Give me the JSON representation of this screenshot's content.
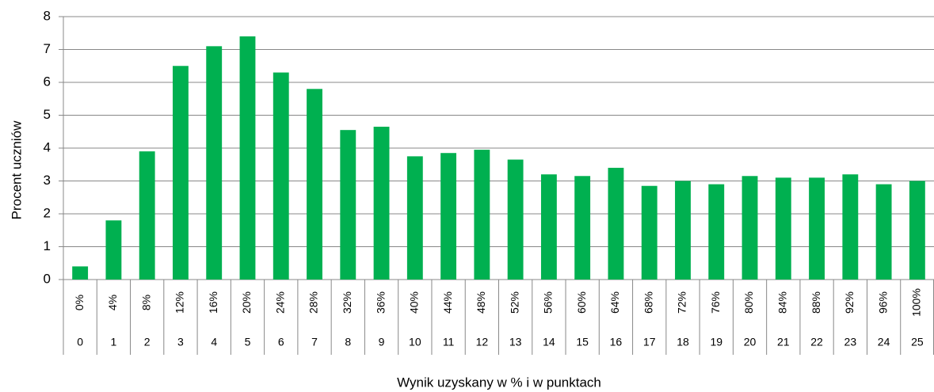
{
  "chart_data": {
    "type": "bar",
    "y_label": "Procent uczniów",
    "x_label": "Wynik uzyskany w % i w punktach",
    "categories": [
      "0",
      "1",
      "2",
      "3",
      "4",
      "5",
      "6",
      "7",
      "8",
      "9",
      "10",
      "11",
      "12",
      "13",
      "14",
      "15",
      "16",
      "17",
      "18",
      "19",
      "20",
      "21",
      "22",
      "23",
      "24",
      "25"
    ],
    "percent_labels": [
      "0%",
      "4%",
      "8%",
      "12%",
      "16%",
      "20%",
      "24%",
      "28%",
      "32%",
      "36%",
      "40%",
      "44%",
      "48%",
      "52%",
      "56%",
      "60%",
      "64%",
      "68%",
      "72%",
      "76%",
      "80%",
      "84%",
      "88%",
      "92%",
      "96%",
      "100%"
    ],
    "values": [
      0.4,
      1.8,
      3.9,
      6.5,
      7.1,
      7.4,
      6.3,
      5.8,
      4.55,
      4.65,
      3.75,
      3.85,
      3.95,
      3.65,
      3.2,
      3.15,
      3.4,
      2.85,
      3.0,
      2.9,
      3.15,
      3.1,
      3.1,
      3.2,
      2.9,
      3.0
    ],
    "color": "#00b050",
    "ylim": [
      0,
      8
    ],
    "yticks": [
      0,
      1,
      2,
      3,
      4,
      5,
      6,
      7,
      8
    ],
    "grid": true
  }
}
